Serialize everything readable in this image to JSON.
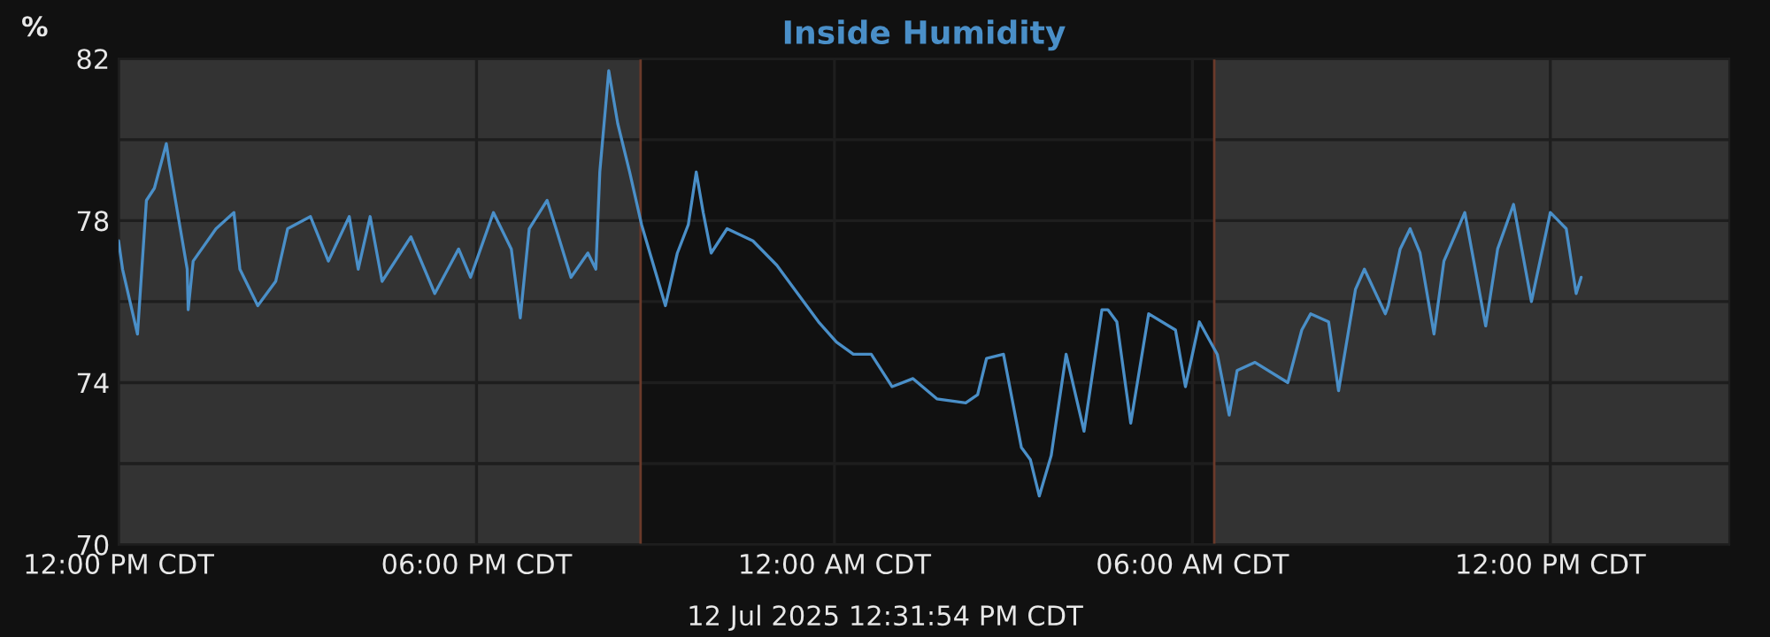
{
  "chart_data": {
    "type": "line",
    "title": "Inside Humidity",
    "ylabel": "%",
    "annotations": [
      "12 Jul 2025 12:31:54 PM CDT"
    ],
    "x": [
      "2025-07-11T12:00",
      "2025-07-11T12:04",
      "2025-07-11T12:19",
      "2025-07-11T12:22",
      "2025-07-11T12:28",
      "2025-07-11T12:36",
      "2025-07-11T12:48",
      "2025-07-11T12:51",
      "2025-07-11T13:09",
      "2025-07-11T13:10",
      "2025-07-11T13:15",
      "2025-07-11T13:38",
      "2025-07-11T13:56",
      "2025-07-11T14:02",
      "2025-07-11T14:20",
      "2025-07-11T14:38",
      "2025-07-11T14:50",
      "2025-07-11T15:13",
      "2025-07-11T15:31",
      "2025-07-11T15:52",
      "2025-07-11T16:01",
      "2025-07-11T16:13",
      "2025-07-11T16:25",
      "2025-07-11T16:54",
      "2025-07-11T17:18",
      "2025-07-11T17:42",
      "2025-07-11T17:54",
      "2025-07-11T18:17",
      "2025-07-11T18:35",
      "2025-07-11T18:44",
      "2025-07-11T18:53",
      "2025-07-11T19:11",
      "2025-07-11T19:20",
      "2025-07-11T19:35",
      "2025-07-11T19:52",
      "2025-07-11T20:00",
      "2025-07-11T20:04",
      "2025-07-11T20:13",
      "2025-07-11T20:22",
      "2025-07-11T20:34",
      "2025-07-11T20:46",
      "2025-07-11T21:10",
      "2025-07-11T21:22",
      "2025-07-11T21:33",
      "2025-07-11T21:41",
      "2025-07-11T21:48",
      "2025-07-11T21:56",
      "2025-07-11T22:12",
      "2025-07-11T22:38",
      "2025-07-11T23:02",
      "2025-07-11T23:20",
      "2025-07-11T23:44",
      "2025-07-12T00:02",
      "2025-07-12T00:19",
      "2025-07-12T00:37",
      "2025-07-12T00:58",
      "2025-07-12T01:19",
      "2025-07-12T01:43",
      "2025-07-12T02:12",
      "2025-07-12T02:24",
      "2025-07-12T02:33",
      "2025-07-12T02:50",
      "2025-07-12T03:08",
      "2025-07-12T03:17",
      "2025-07-12T03:26",
      "2025-07-12T03:38",
      "2025-07-12T03:53",
      "2025-07-12T04:11",
      "2025-07-12T04:29",
      "2025-07-12T04:35",
      "2025-07-12T04:44",
      "2025-07-12T04:58",
      "2025-07-12T05:16",
      "2025-07-12T05:43",
      "2025-07-12T05:53",
      "2025-07-12T06:07",
      "2025-07-12T06:25",
      "2025-07-12T06:37",
      "2025-07-12T06:45",
      "2025-07-12T07:03",
      "2025-07-12T07:36",
      "2025-07-12T07:50",
      "2025-07-12T07:59",
      "2025-07-12T08:17",
      "2025-07-12T08:27",
      "2025-07-12T08:44",
      "2025-07-12T08:53",
      "2025-07-12T09:14",
      "2025-07-12T09:17",
      "2025-07-12T09:29",
      "2025-07-12T09:39",
      "2025-07-12T09:49",
      "2025-07-12T10:03",
      "2025-07-12T10:13",
      "2025-07-12T10:34",
      "2025-07-12T10:55",
      "2025-07-12T11:07",
      "2025-07-12T11:23",
      "2025-07-12T11:41",
      "2025-07-12T12:00",
      "2025-07-12T12:16",
      "2025-07-12T12:26",
      "2025-07-12T12:31"
    ],
    "series": [
      {
        "color": "#4a8fc8",
        "values": [
          77.5,
          76.8,
          75.2,
          76.3,
          78.5,
          78.8,
          79.9,
          79.4,
          76.8,
          75.8,
          77.0,
          77.8,
          78.2,
          76.8,
          75.9,
          76.5,
          77.8,
          78.1,
          77.0,
          78.1,
          76.8,
          78.1,
          76.5,
          77.6,
          76.2,
          77.3,
          76.6,
          78.2,
          77.3,
          75.6,
          77.8,
          78.5,
          77.8,
          76.6,
          77.2,
          76.8,
          79.2,
          81.7,
          80.4,
          79.2,
          77.9,
          75.9,
          77.2,
          77.9,
          79.2,
          78.2,
          77.2,
          77.8,
          77.5,
          76.9,
          76.3,
          75.5,
          75.0,
          74.7,
          74.7,
          73.9,
          74.1,
          73.6,
          73.5,
          73.7,
          74.6,
          74.7,
          72.4,
          72.1,
          71.2,
          72.2,
          74.7,
          72.8,
          75.8,
          75.8,
          75.5,
          73.0,
          75.7,
          75.3,
          73.9,
          75.5,
          74.7,
          73.2,
          74.3,
          74.5,
          74.0,
          75.3,
          75.7,
          75.5,
          73.8,
          76.3,
          76.8,
          75.7,
          75.9,
          77.3,
          77.8,
          77.2,
          75.2,
          77.0,
          78.2,
          75.4,
          77.3,
          78.4,
          76.0,
          78.2,
          77.8,
          76.2,
          76.6
        ]
      }
    ],
    "xlim": [
      "2025-07-11T12:00",
      "2025-07-12T15:00"
    ],
    "xticks": [
      {
        "value": "2025-07-11T12:00",
        "label": "12:00 PM CDT"
      },
      {
        "value": "2025-07-11T18:00",
        "label": "06:00 PM CDT"
      },
      {
        "value": "2025-07-12T00:00",
        "label": "12:00 AM CDT"
      },
      {
        "value": "2025-07-12T06:00",
        "label": "06:00 AM CDT"
      },
      {
        "value": "2025-07-12T12:00",
        "label": "12:00 PM CDT"
      }
    ],
    "ylim": [
      70,
      82
    ],
    "yticks": [
      70,
      {
        "value": 72,
        "label": null
      },
      74,
      {
        "value": 76,
        "label": null
      },
      78,
      {
        "value": 80,
        "label": null
      },
      82
    ],
    "bands": [
      {
        "axis": "x",
        "from": "2025-07-11T20:45",
        "to": "2025-07-12T06:22",
        "color": "#111111"
      }
    ],
    "ref_lines": [
      {
        "axis": "x",
        "value": "2025-07-11T20:45",
        "color": "#6b3a2a"
      },
      {
        "axis": "x",
        "value": "2025-07-12T06:22",
        "color": "#6b3a2a"
      }
    ],
    "grid": true,
    "legend": false
  }
}
